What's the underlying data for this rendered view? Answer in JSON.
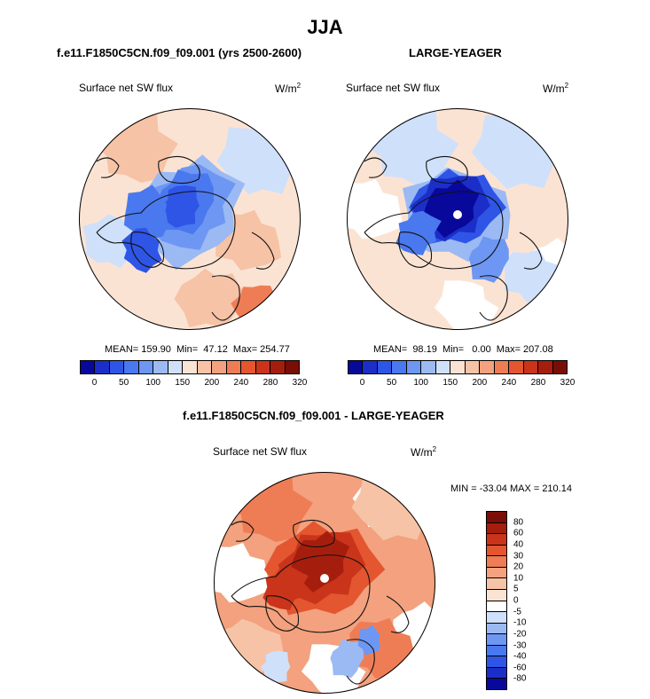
{
  "page_title": "JJA",
  "panels": [
    {
      "case": "f.e11.F1850C5CN.f09_f09.001 (yrs 2500-2600)",
      "variable": "Surface net SW flux",
      "units": "W/m",
      "units_sup": "2",
      "stats": "MEAN= 159.90  Min=  47.12  Max= 254.77"
    },
    {
      "case": "LARGE-YEAGER",
      "variable": "Surface net SW flux",
      "units": "W/m",
      "units_sup": "2",
      "stats": "MEAN=  98.19  Min=   0.00  Max= 207.08"
    },
    {
      "case": "f.e11.F1850C5CN.f09_f09.001 - LARGE-YEAGER",
      "variable": "Surface net SW flux",
      "units": "W/m",
      "units_sup": "2",
      "stats": "MIN = -33.04 MAX = 210.14"
    }
  ],
  "colors": {
    "abs_scale": [
      "#08089a",
      "#1b2fc8",
      "#2f55e6",
      "#4a78ee",
      "#6d97f2",
      "#9bbaf4",
      "#cfe0fb",
      "#fbe3d3",
      "#f6c3a7",
      "#f3a17e",
      "#ee7d56",
      "#e3562f",
      "#c9341a",
      "#a51e0d",
      "#7a0e06"
    ],
    "diff_scale": [
      "#7a0e06",
      "#a51e0d",
      "#c9341a",
      "#e3562f",
      "#ee7d56",
      "#f3a17e",
      "#f6c3a7",
      "#fbe3d3",
      "#ffffff",
      "#cfe0fb",
      "#9bbaf4",
      "#6d97f2",
      "#4a78ee",
      "#2f55e6",
      "#1b2fc8",
      "#08089a"
    ]
  },
  "chart_data": [
    {
      "type": "heatmap",
      "projection": "north polar stereographic",
      "title": "Surface net SW flux",
      "colorbar_labels": [
        "0",
        "50",
        "100",
        "150",
        "200",
        "240",
        "280",
        "320"
      ],
      "mean": 159.9,
      "min": 47.12,
      "max": 254.77
    },
    {
      "type": "heatmap",
      "projection": "north polar stereographic",
      "title": "Surface net SW flux",
      "colorbar_labels": [
        "0",
        "50",
        "100",
        "150",
        "200",
        "240",
        "280",
        "320"
      ],
      "mean": 98.19,
      "min": 0.0,
      "max": 207.08
    },
    {
      "type": "heatmap",
      "projection": "north polar stereographic",
      "title": "Surface net SW flux",
      "colorbar_labels": [
        "80",
        "60",
        "40",
        "30",
        "20",
        "10",
        "5",
        "0",
        "-5",
        "-10",
        "-20",
        "-30",
        "-40",
        "-60",
        "-80"
      ],
      "min": -33.04,
      "max": 210.14
    }
  ]
}
